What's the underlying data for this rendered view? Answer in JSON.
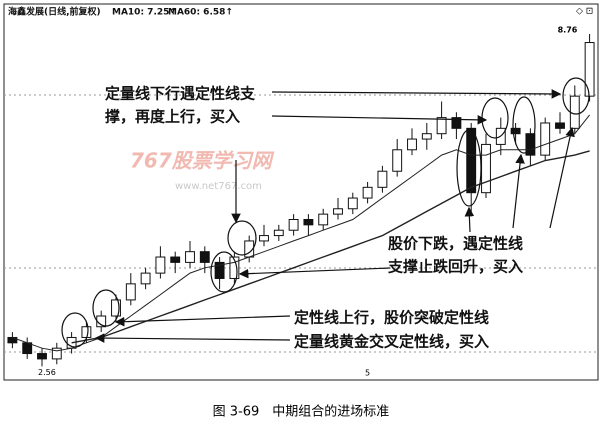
{
  "chart_data": {
    "type": "candlestick",
    "title": "海鑫发展(日线,前复权)",
    "ma10_label": "MA10: 7.25↑",
    "ma60_label": "MA60: 6.58↑",
    "candles": {
      "open": [
        3.1,
        3.0,
        2.8,
        2.7,
        2.9,
        3.1,
        3.3,
        3.5,
        3.8,
        4.1,
        4.3,
        4.6,
        4.5,
        4.7,
        4.5,
        4.2,
        4.6,
        4.9,
        5.0,
        5.1,
        5.3,
        5.2,
        5.4,
        5.5,
        5.7,
        5.9,
        6.2,
        6.6,
        6.8,
        6.9,
        7.2,
        7.0,
        5.8,
        6.7,
        7.0,
        6.9,
        6.5,
        7.1,
        7.0,
        7.6
      ],
      "high": [
        3.2,
        3.1,
        2.9,
        3.0,
        3.2,
        3.4,
        3.6,
        3.9,
        4.3,
        4.4,
        4.8,
        4.7,
        4.9,
        4.8,
        4.6,
        4.7,
        5.0,
        5.2,
        5.2,
        5.4,
        5.4,
        5.5,
        5.7,
        5.8,
        6.0,
        6.3,
        6.8,
        7.0,
        7.1,
        7.5,
        7.3,
        7.1,
        6.9,
        7.2,
        7.1,
        7.0,
        7.2,
        7.3,
        7.8,
        8.76
      ],
      "low": [
        2.9,
        2.7,
        2.56,
        2.6,
        2.8,
        3.0,
        3.2,
        3.4,
        3.7,
        4.0,
        4.2,
        4.3,
        4.4,
        4.3,
        4.0,
        4.1,
        4.5,
        4.8,
        4.9,
        5.0,
        5.0,
        5.1,
        5.3,
        5.4,
        5.6,
        5.8,
        6.1,
        6.5,
        6.6,
        6.8,
        6.8,
        5.4,
        5.7,
        6.5,
        6.7,
        6.3,
        6.4,
        6.9,
        6.9,
        7.5
      ],
      "close": [
        3.0,
        2.8,
        2.7,
        2.9,
        3.1,
        3.3,
        3.5,
        3.8,
        4.1,
        4.3,
        4.6,
        4.5,
        4.7,
        4.5,
        4.2,
        4.6,
        4.9,
        5.0,
        5.1,
        5.3,
        5.2,
        5.4,
        5.5,
        5.7,
        5.9,
        6.2,
        6.6,
        6.8,
        6.9,
        7.2,
        7.0,
        5.8,
        6.7,
        7.0,
        6.9,
        6.5,
        7.1,
        7.0,
        7.6,
        8.6
      ]
    },
    "series": [
      {
        "name": "MA10",
        "color": "#222222",
        "values": [
          3.1,
          3.0,
          2.9,
          2.85,
          2.9,
          3.0,
          3.1,
          3.3,
          3.5,
          3.7,
          3.9,
          4.1,
          4.3,
          4.4,
          4.45,
          4.5,
          4.6,
          4.7,
          4.8,
          4.9,
          5.0,
          5.1,
          5.2,
          5.3,
          5.5,
          5.7,
          5.9,
          6.1,
          6.3,
          6.5,
          6.6,
          6.5,
          6.5,
          6.6,
          6.6,
          6.6,
          6.7,
          6.8,
          6.9,
          7.25
        ]
      },
      {
        "name": "MA60",
        "color": "#222222",
        "values": [
          null,
          null,
          null,
          null,
          3.0,
          3.05,
          3.1,
          3.2,
          3.3,
          3.4,
          3.5,
          3.6,
          3.7,
          3.8,
          3.9,
          4.0,
          4.1,
          4.2,
          4.3,
          4.4,
          4.5,
          4.6,
          4.7,
          4.8,
          4.9,
          5.0,
          5.15,
          5.3,
          5.45,
          5.6,
          5.75,
          5.9,
          6.0,
          6.1,
          6.2,
          6.3,
          6.4,
          6.45,
          6.5,
          6.58
        ]
      }
    ],
    "ylim": [
      2.4,
      9.3
    ],
    "page_number": "5",
    "watermark": [
      "767股票学习网",
      "www.net767.com"
    ],
    "annotations": [
      [
        "定量线下行遇定性线支",
        "撑，再度上行，买入"
      ],
      [
        "股价下跌，遇定性线",
        "支撑止跌回升，买入"
      ],
      [
        "定性线上行，股价突破定性线",
        "定量线黄金交叉定性线，买入"
      ]
    ],
    "caption": "图 3-69　中期组合的进场标准"
  }
}
